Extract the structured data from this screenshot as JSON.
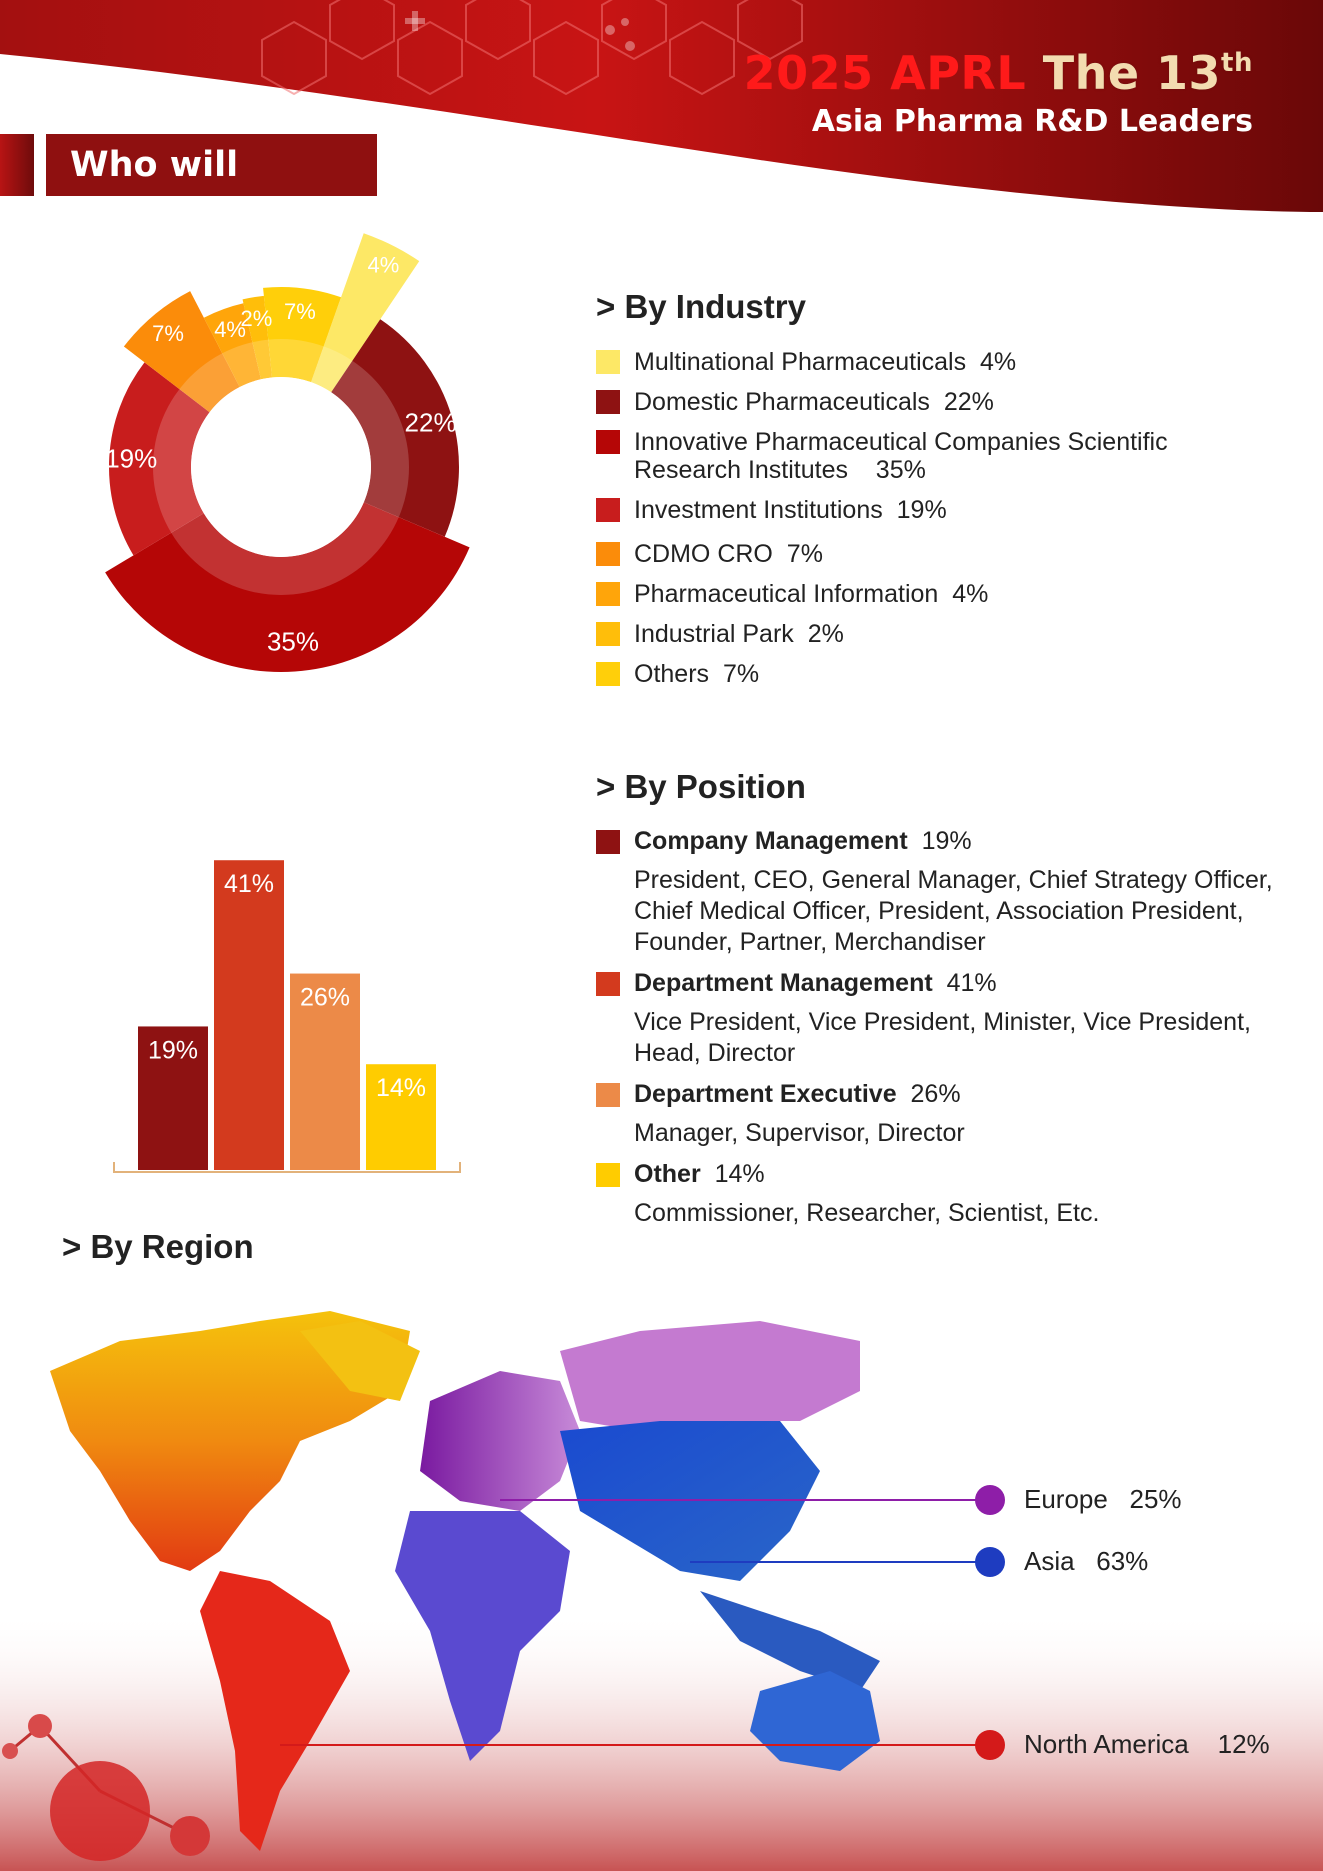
{
  "header": {
    "title_year": "2025 APRL",
    "title_the": "The 13",
    "title_sup": "th",
    "subtitle": "Asia Pharma R&D Leaders"
  },
  "section": {
    "who_will_attend": "Who will attend"
  },
  "by_industry": {
    "heading": ">  By Industry",
    "items": [
      {
        "label": "Multinational Pharmaceuticals",
        "pct": "4%",
        "color": "#fde866"
      },
      {
        "label": "Domestic Pharmaceuticals",
        "pct": "22%",
        "color": "#8e1212"
      },
      {
        "label": "Innovative Pharmaceutical Companies Scientific",
        "label2": "Research Institutes",
        "pct": "35%",
        "color": "#b50606"
      },
      {
        "label": "Investment Institutions",
        "pct": "19%",
        "color": "#c81d1d"
      },
      {
        "label": "CDMO CRO",
        "pct": "7%",
        "color": "#fb8c0a"
      },
      {
        "label": "Pharmaceutical Information",
        "pct": "4%",
        "color": "#ffa50a"
      },
      {
        "label": "Industrial Park",
        "pct": "2%",
        "color": "#ffbe0a"
      },
      {
        "label": "Others",
        "pct": "7%",
        "color": "#ffcf0a"
      }
    ]
  },
  "by_position": {
    "heading": ">  By Position",
    "items": [
      {
        "label": "Company Management",
        "pct": "19%",
        "color": "#8e1212",
        "desc": "President, CEO, General Manager, Chief Strategy Officer, Chief Medical Officer, President, Association President, Founder, Partner, Merchandiser"
      },
      {
        "label": "Department Management",
        "pct": "41%",
        "color": "#d33a1e",
        "desc": "Vice President, Vice President, Minister, Vice President, Head, Director"
      },
      {
        "label": "Department Executive",
        "pct": "26%",
        "color": "#ec8a48",
        "desc": "Manager, Supervisor, Director"
      },
      {
        "label": "Other",
        "pct": "14%",
        "color": "#ffcc00",
        "desc": "Commissioner, Researcher, Scientist, Etc."
      }
    ]
  },
  "by_region": {
    "heading": ">  By Region",
    "items": [
      {
        "label": "Europe",
        "pct": "25%",
        "color": "#8e1ea8"
      },
      {
        "label": "Asia",
        "pct": "63%",
        "color": "#1e3cc0"
      },
      {
        "label": "North America",
        "pct": "12%",
        "color": "#d41a1a"
      }
    ]
  },
  "chart_data": [
    {
      "type": "pie",
      "categories": [
        "Multinational Pharmaceuticals",
        "Domestic Pharmaceuticals",
        "Innovative Pharmaceutical Companies Scientific Research Institutes",
        "Investment Institutions",
        "CDMO CRO",
        "Pharmaceutical Information",
        "Industrial Park",
        "Others"
      ],
      "values": [
        4,
        22,
        35,
        19,
        7,
        4,
        2,
        7
      ],
      "data_labels": [
        "4%",
        "22%",
        "35%",
        "19%",
        "7%",
        "4%",
        "2%",
        "7%"
      ],
      "colors": [
        "#fde866",
        "#8e1212",
        "#b50606",
        "#c81d1d",
        "#fb8c0a",
        "#ffa50a",
        "#ffbe0a",
        "#ffcf0a"
      ],
      "legend": "right"
    },
    {
      "type": "bar",
      "categories": [
        "Company Management",
        "Department Management",
        "Department Executive",
        "Other"
      ],
      "values": [
        19,
        41,
        26,
        14
      ],
      "data_labels": [
        "19%",
        "41%",
        "26%",
        "14%"
      ],
      "colors": [
        "#8e1212",
        "#d33a1e",
        "#ec8a48",
        "#ffcc00"
      ],
      "ylim": [
        0,
        45
      ],
      "grid": false,
      "legend": "right"
    },
    {
      "type": "pie",
      "categories": [
        "Europe",
        "Asia",
        "North America"
      ],
      "values": [
        25,
        63,
        12
      ],
      "colors": [
        "#8e1ea8",
        "#1e3cc0",
        "#d41a1a"
      ]
    }
  ]
}
